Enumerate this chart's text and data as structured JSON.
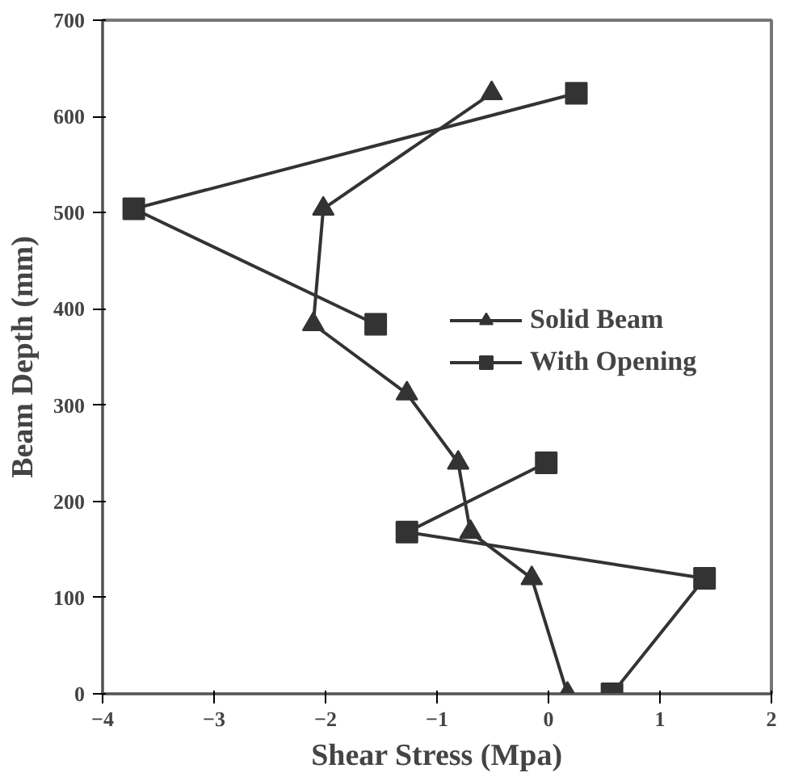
{
  "chart_data": {
    "type": "line",
    "xlabel": "Shear Stress (Mpa)",
    "ylabel": "Beam Depth (mm)",
    "xlim": [
      -4,
      2
    ],
    "xticks": [
      -4,
      -3,
      -2,
      -1,
      0,
      1,
      2
    ],
    "ylim": [
      0,
      700
    ],
    "yticks": [
      0,
      100,
      200,
      300,
      400,
      500,
      600,
      700
    ],
    "grid": false,
    "legend": "right",
    "line_style": "solid",
    "series": [
      {
        "name": "Solid Beam",
        "color": "#333333",
        "marker": "triangle",
        "x": [
          0.17,
          -0.15,
          -0.7,
          -0.81,
          -1.27,
          -2.11,
          -2.02,
          -0.51
        ],
        "values": [
          0,
          120,
          168,
          240,
          312,
          384,
          504,
          624
        ]
      },
      {
        "name": "With Opening",
        "color": "#333333",
        "marker": "square",
        "x": [
          0.57,
          1.4,
          -1.27,
          -0.02,
          null,
          -1.55,
          -3.72,
          0.25
        ],
        "values": [
          0,
          120,
          168,
          240,
          null,
          384,
          504,
          624
        ]
      }
    ]
  }
}
